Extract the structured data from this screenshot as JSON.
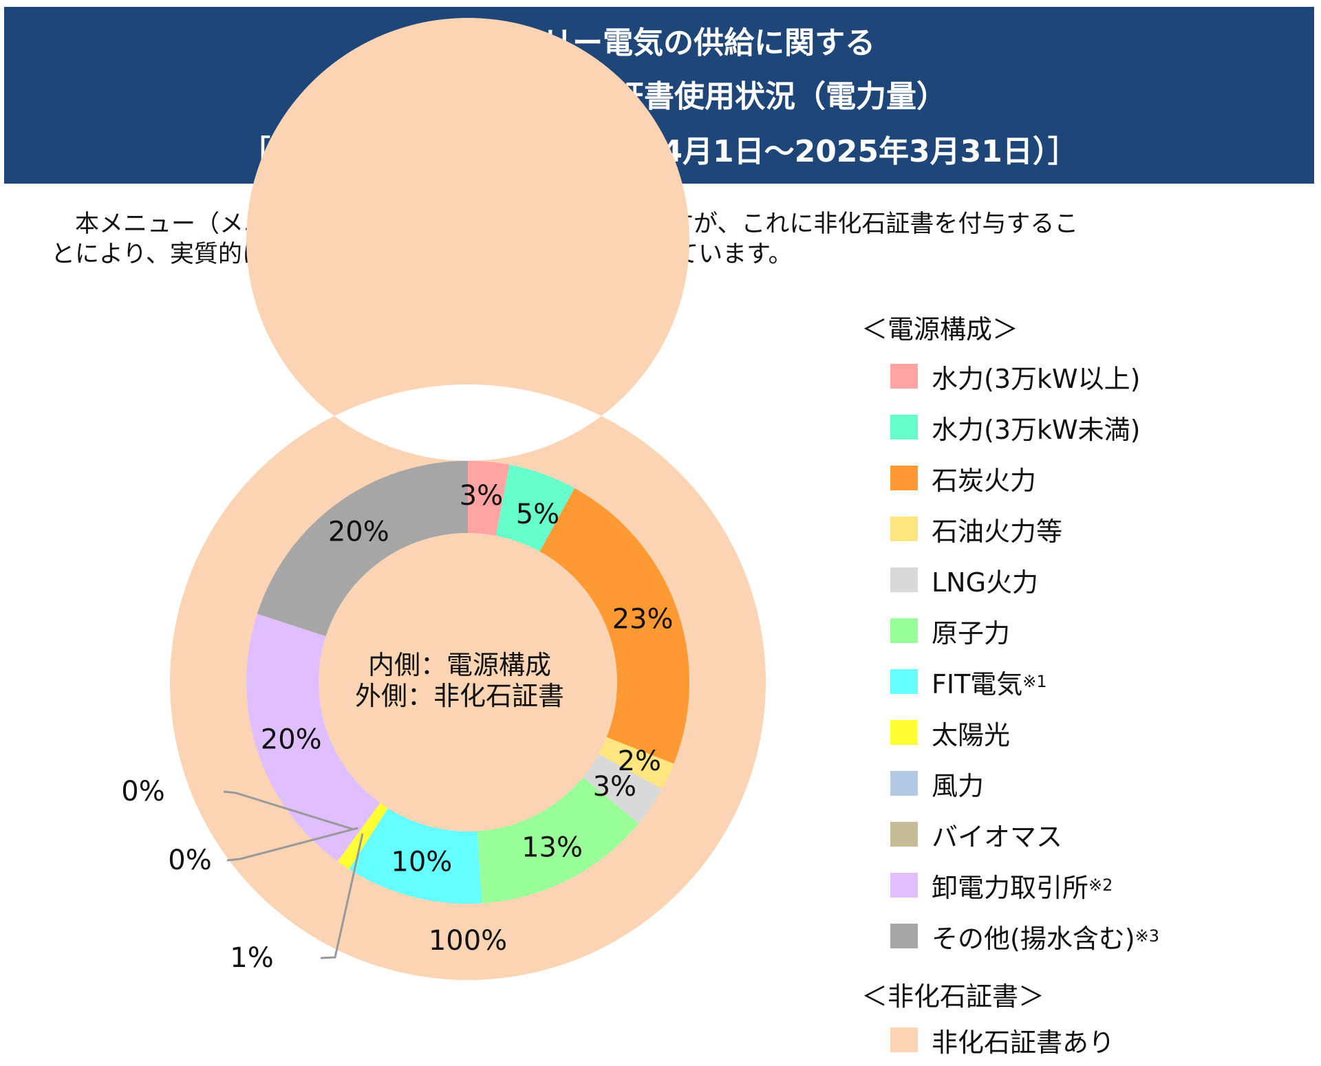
{
  "header": {
    "line1": "CO2フリー電気の供給に関する",
    "line2": "電源構成・非化石証書使用状況（電力量）",
    "line3": "［2024年度 実績値（2024年4月1日～2025年3月31日）］"
  },
  "intro": {
    "line1": "　本メニュー（メニューB）の電源構成は下記のとおりですが、これに非化石証書を付与するこ",
    "line2": "とにより、実質的にCO2フリー電気100%の調達を実現しています。"
  },
  "chart_data": {
    "type": "donut",
    "center_label": [
      "内側：電源構成",
      "外側：非化石証書"
    ],
    "inner": {
      "name": "電源構成",
      "categories": [
        "水力(3万kW以上)",
        "水力(3万kW未満)",
        "石炭火力",
        "石油火力等",
        "LNG火力",
        "原子力",
        "FIT電気",
        "太陽光",
        "風力",
        "バイオマス",
        "卸電力取引所",
        "その他(揚水含む)"
      ],
      "values": [
        3,
        5,
        23,
        2,
        3,
        13,
        10,
        1,
        0,
        0,
        20,
        20
      ],
      "labels": [
        "3%",
        "5%",
        "23%",
        "2%",
        "3%",
        "13%",
        "10%",
        "1%",
        "0%",
        "0%",
        "20%",
        "20%"
      ],
      "colors": [
        "#ffa3a3",
        "#66ffcc",
        "#ff9933",
        "#ffe680",
        "#d9d9d9",
        "#99ff99",
        "#66ffff",
        "#ffff33",
        "#b4c9e3",
        "#c4bd97",
        "#dfbfff",
        "#a6a6a6"
      ],
      "footnotes": [
        "",
        "",
        "",
        "",
        "",
        "",
        "※1",
        "",
        "",
        "",
        "※2",
        "※3"
      ]
    },
    "outer": {
      "name": "非化石証書",
      "categories": [
        "非化石証書あり"
      ],
      "values": [
        100
      ],
      "labels": [
        "100%"
      ],
      "colors": [
        "#fbd4b4"
      ]
    }
  },
  "legend": {
    "inner_heading": "＜電源構成＞",
    "outer_heading": "＜非化石証書＞"
  }
}
